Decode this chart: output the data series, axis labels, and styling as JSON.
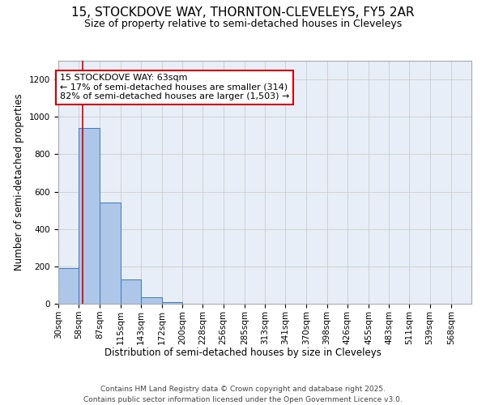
{
  "title_line1": "15, STOCKDOVE WAY, THORNTON-CLEVELEYS, FY5 2AR",
  "title_line2": "Size of property relative to semi-detached houses in Cleveleys",
  "xlabel": "Distribution of semi-detached houses by size in Cleveleys",
  "ylabel": "Number of semi-detached properties",
  "bin_edges": [
    30,
    58,
    87,
    115,
    143,
    172,
    200,
    228,
    256,
    285,
    313,
    341,
    370,
    398,
    426,
    455,
    483,
    511,
    539,
    568,
    596
  ],
  "bar_heights": [
    190,
    940,
    540,
    130,
    35,
    10,
    0,
    0,
    0,
    0,
    0,
    0,
    0,
    0,
    0,
    0,
    0,
    0,
    0,
    0
  ],
  "bar_color": "#aec6e8",
  "bar_edge_color": "#3a7abf",
  "property_size": 63,
  "property_label": "15 STOCKDOVE WAY: 63sqm",
  "pct_smaller": 17,
  "pct_larger": 82,
  "n_smaller": 314,
  "n_larger": 1503,
  "annotation_box_color": "#ffffff",
  "annotation_box_edge": "#cc0000",
  "red_line_color": "#cc0000",
  "ylim": [
    0,
    1300
  ],
  "yticks": [
    0,
    200,
    400,
    600,
    800,
    1000,
    1200
  ],
  "grid_color": "#cccccc",
  "bg_color": "#e8eef7",
  "footer": "Contains HM Land Registry data © Crown copyright and database right 2025.\nContains public sector information licensed under the Open Government Licence v3.0.",
  "title_fontsize": 11,
  "subtitle_fontsize": 9,
  "axis_label_fontsize": 8.5,
  "tick_fontsize": 7.5,
  "annotation_fontsize": 8,
  "footer_fontsize": 6.5
}
